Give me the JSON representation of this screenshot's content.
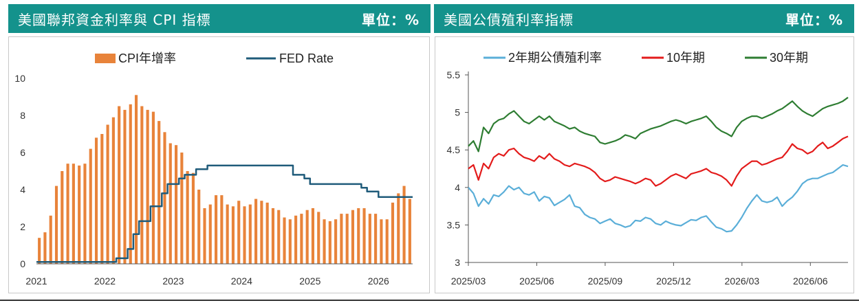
{
  "panels": {
    "left": {
      "title": "美國聯邦資金利率與 CPI 指標",
      "unit": "單位：%"
    },
    "right": {
      "title": "美國公債殖利率指標",
      "unit": "單位：%"
    }
  },
  "colors": {
    "header_bg": "#14928c",
    "cpi_bar": "#e8833a",
    "fed_line": "#1f5b7a",
    "y2": "#5aaed8",
    "y10": "#e31b1b",
    "y30": "#2e7d32"
  },
  "chart_data": [
    {
      "type": "bar",
      "title": "",
      "legend": [
        "CPI年增率",
        "FED Rate"
      ],
      "legend_position": "top",
      "x_ticks": [
        "2021",
        "2022",
        "2023",
        "2024",
        "2025",
        "2026"
      ],
      "y_ticks": [
        "0",
        "2",
        "4",
        "6",
        "8",
        "10"
      ],
      "ylim": [
        0,
        10
      ],
      "grid": false,
      "frequency": "monthly",
      "start": "2021-01",
      "series": [
        {
          "name": "CPI年增率",
          "type": "bar",
          "values": [
            1.4,
            1.7,
            2.6,
            4.2,
            5.0,
            5.4,
            5.4,
            5.3,
            5.4,
            6.2,
            6.8,
            7.0,
            7.5,
            7.9,
            8.5,
            8.3,
            8.6,
            9.1,
            8.5,
            8.3,
            8.2,
            7.7,
            7.1,
            6.5,
            6.4,
            6.0,
            5.0,
            4.9,
            4.0,
            3.0,
            3.2,
            3.7,
            3.7,
            3.2,
            3.1,
            3.4,
            3.1,
            3.2,
            3.5,
            3.4,
            3.3,
            3.0,
            2.9,
            2.5,
            2.4,
            2.6,
            2.7,
            2.9,
            3.0,
            2.8,
            2.4,
            2.3,
            2.4,
            2.7,
            2.7,
            2.9,
            3.0,
            3.0,
            2.7,
            2.7,
            2.4,
            2.4,
            3.3,
            3.8,
            4.2,
            3.5
          ]
        },
        {
          "name": "FED Rate",
          "type": "line",
          "values": [
            0.1,
            0.1,
            0.1,
            0.1,
            0.1,
            0.1,
            0.1,
            0.1,
            0.1,
            0.1,
            0.1,
            0.1,
            0.1,
            0.1,
            0.3,
            0.3,
            0.8,
            1.6,
            2.3,
            2.3,
            3.1,
            3.1,
            3.8,
            4.3,
            4.3,
            4.6,
            4.8,
            4.8,
            5.1,
            5.1,
            5.3,
            5.3,
            5.3,
            5.3,
            5.3,
            5.3,
            5.3,
            5.3,
            5.3,
            5.3,
            5.3,
            5.3,
            5.3,
            5.3,
            5.3,
            4.8,
            4.8,
            4.6,
            4.3,
            4.3,
            4.3,
            4.3,
            4.3,
            4.3,
            4.3,
            4.3,
            4.3,
            4.1,
            3.9,
            3.9,
            3.6,
            3.6,
            3.6,
            3.6,
            3.6,
            3.6
          ]
        }
      ]
    },
    {
      "type": "line",
      "title": "",
      "legend": [
        "2年期公債殖利率",
        "10年期",
        "30年期"
      ],
      "legend_position": "top",
      "x_ticks": [
        "2025/03",
        "2025/06",
        "2025/09",
        "2025/12",
        "2026/03",
        "2026/06"
      ],
      "y_ticks": [
        "3",
        "3.5",
        "4",
        "4.5",
        "5",
        "5.5"
      ],
      "ylim": [
        3,
        5.5
      ],
      "grid": false,
      "frequency": "weekly",
      "start": "2025-03",
      "series": [
        {
          "name": "2年期公債殖利率",
          "values": [
            4.0,
            3.92,
            3.75,
            3.85,
            3.78,
            3.9,
            3.88,
            3.94,
            4.02,
            3.97,
            4.0,
            3.92,
            3.9,
            3.94,
            3.82,
            3.88,
            3.86,
            3.76,
            3.8,
            3.84,
            3.9,
            3.75,
            3.73,
            3.64,
            3.6,
            3.58,
            3.52,
            3.55,
            3.58,
            3.52,
            3.5,
            3.47,
            3.49,
            3.56,
            3.55,
            3.6,
            3.58,
            3.52,
            3.5,
            3.55,
            3.52,
            3.5,
            3.49,
            3.53,
            3.57,
            3.56,
            3.6,
            3.62,
            3.54,
            3.47,
            3.45,
            3.41,
            3.42,
            3.5,
            3.6,
            3.72,
            3.82,
            3.9,
            3.82,
            3.8,
            3.82,
            3.87,
            3.75,
            3.82,
            3.87,
            3.95,
            4.05,
            4.1,
            4.12,
            4.12,
            4.15,
            4.18,
            4.2,
            4.25,
            4.3,
            4.28
          ]
        },
        {
          "name": "10年期",
          "values": [
            4.25,
            4.3,
            4.1,
            4.32,
            4.25,
            4.4,
            4.45,
            4.42,
            4.5,
            4.52,
            4.45,
            4.4,
            4.38,
            4.35,
            4.42,
            4.38,
            4.45,
            4.38,
            4.35,
            4.3,
            4.28,
            4.32,
            4.3,
            4.28,
            4.25,
            4.2,
            4.12,
            4.08,
            4.1,
            4.14,
            4.12,
            4.1,
            4.08,
            4.05,
            4.08,
            4.12,
            4.1,
            4.02,
            4.05,
            4.1,
            4.15,
            4.18,
            4.15,
            4.12,
            4.18,
            4.2,
            4.22,
            4.25,
            4.2,
            4.18,
            4.15,
            4.1,
            4.02,
            4.15,
            4.25,
            4.3,
            4.35,
            4.35,
            4.3,
            4.32,
            4.35,
            4.38,
            4.4,
            4.48,
            4.58,
            4.52,
            4.5,
            4.45,
            4.48,
            4.55,
            4.6,
            4.52,
            4.55,
            4.6,
            4.65,
            4.68
          ]
        },
        {
          "name": "30年期",
          "values": [
            4.55,
            4.62,
            4.48,
            4.8,
            4.72,
            4.85,
            4.9,
            4.92,
            4.98,
            5.02,
            4.95,
            4.88,
            4.85,
            4.9,
            4.95,
            4.9,
            4.95,
            4.88,
            4.85,
            4.82,
            4.78,
            4.8,
            4.75,
            4.72,
            4.7,
            4.68,
            4.6,
            4.58,
            4.6,
            4.62,
            4.65,
            4.7,
            4.68,
            4.65,
            4.72,
            4.75,
            4.78,
            4.8,
            4.82,
            4.85,
            4.88,
            4.9,
            4.88,
            4.85,
            4.88,
            4.9,
            4.92,
            4.95,
            4.88,
            4.8,
            4.75,
            4.72,
            4.68,
            4.8,
            4.88,
            4.92,
            4.95,
            4.95,
            4.92,
            4.95,
            4.98,
            5.02,
            5.05,
            5.1,
            5.15,
            5.08,
            5.02,
            4.98,
            4.95,
            5.0,
            5.05,
            5.08,
            5.1,
            5.12,
            5.15,
            5.2
          ]
        }
      ]
    }
  ]
}
